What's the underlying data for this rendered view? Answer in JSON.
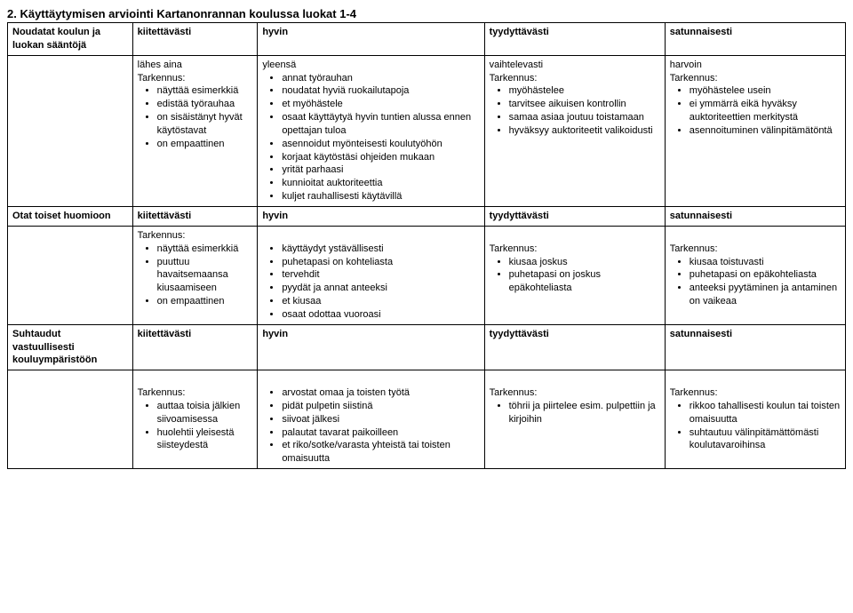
{
  "title": "2. Käyttäytymisen arviointi Kartanonrannan koulussa luokat 1-4",
  "headers": {
    "c1": "kiitettävästi",
    "c2": "hyvin",
    "c3": "tyydyttävästi",
    "c4": "satunnaisesti"
  },
  "row1": {
    "label_a": "Noudatat koulun ja",
    "label_b": "luokan sääntöjä"
  },
  "row2": {
    "c1_top": "lähes aina",
    "c1_tark": "Tarkennus:",
    "c1_items": [
      "näyttää esimerkkiä",
      "edistää työrauhaa",
      "on sisäistänyt hyvät käytöstavat",
      "on empaattinen"
    ],
    "c2_top": "yleensä",
    "c2_items": [
      "annat työrauhan",
      "noudatat hyviä ruokailutapoja",
      "et myöhästele",
      "osaat käyttäytyä hyvin tuntien alussa ennen opettajan tuloa",
      "asennoidut myönteisesti koulutyöhön",
      "korjaat käytöstäsi ohjeiden mukaan",
      "yrität parhaasi",
      "kunnioitat auktoriteettia",
      "kuljet rauhallisesti käytävillä"
    ],
    "c3_top": "vaihtelevasti",
    "c3_tark": "Tarkennus:",
    "c3_items": [
      "myöhästelee",
      "tarvitsee aikuisen kontrollin",
      "samaa asiaa joutuu toistamaan",
      "hyväksyy auktoriteetit valikoidusti"
    ],
    "c4_top": "harvoin",
    "c4_tark": "Tarkennus:",
    "c4_items": [
      "myöhästelee usein",
      "ei ymmärrä eikä hyväksy auktoriteettien merkitystä",
      "asennoituminen välinpitämätöntä"
    ]
  },
  "row3": {
    "label": "Otat toiset huomioon"
  },
  "row4": {
    "c1_tark": "Tarkennus:",
    "c1_items": [
      "näyttää esimerkkiä",
      "puuttuu havaitsemaansa kiusaamiseen",
      "on empaattinen"
    ],
    "c2_items": [
      "käyttäydyt ystävällisesti",
      "puhetapasi on kohteliasta",
      "tervehdit",
      "pyydät ja annat anteeksi",
      "et kiusaa",
      "osaat odottaa vuoroasi"
    ],
    "c3_tark": "Tarkennus:",
    "c3_items": [
      "kiusaa joskus",
      "puhetapasi on joskus epäkohteliasta"
    ],
    "c4_tark": "Tarkennus:",
    "c4_items": [
      "kiusaa toistuvasti",
      "puhetapasi on epäkohteliasta",
      "anteeksi pyytäminen ja antaminen on vaikeaa"
    ]
  },
  "row5": {
    "label_a": "Suhtaudut",
    "label_b": "vastuullisesti",
    "label_c": "kouluympäristöön"
  },
  "row6": {
    "c1_tark": "Tarkennus:",
    "c1_items": [
      "auttaa toisia jälkien siivoamisessa",
      "huolehtii yleisestä siisteydestä"
    ],
    "c2_items": [
      "arvostat omaa ja toisten työtä",
      "pidät pulpetin siistinä",
      "siivoat jälkesi",
      "palautat tavarat paikoilleen",
      "et riko/sotke/varasta yhteistä tai toisten omaisuutta"
    ],
    "c3_tark": "Tarkennus:",
    "c3_items": [
      "töhrii ja piirtelee esim. pulpettiin ja kirjoihin"
    ],
    "c4_tark": "Tarkennus:",
    "c4_items": [
      "rikkoo tahallisesti koulun tai toisten omaisuutta",
      "suhtautuu välinpitämättömästi koulutavaroihinsa"
    ]
  }
}
